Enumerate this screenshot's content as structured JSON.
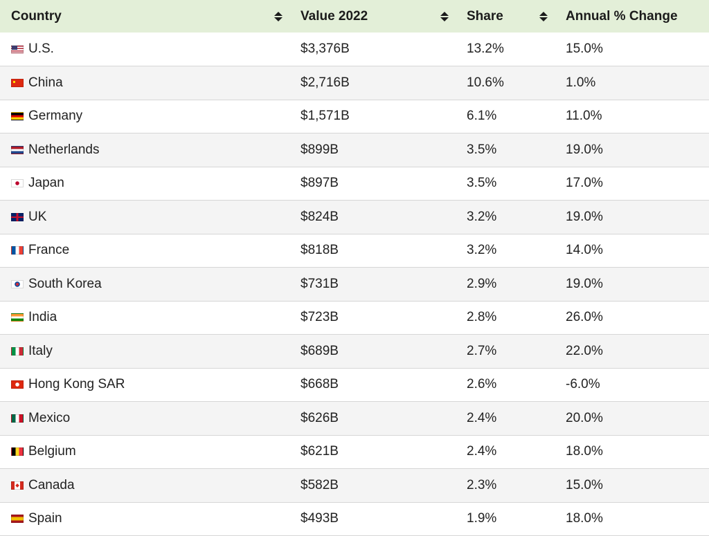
{
  "table": {
    "headers": [
      {
        "label": "Country",
        "sortable": true
      },
      {
        "label": "Value 2022",
        "sortable": true
      },
      {
        "label": "Share",
        "sortable": true
      },
      {
        "label": "Annual % Change",
        "sortable": false
      }
    ],
    "rows": [
      {
        "flag": "us",
        "country": "U.S.",
        "value": "$3,376B",
        "share": "13.2%",
        "change": "15.0%"
      },
      {
        "flag": "cn",
        "country": "China",
        "value": "$2,716B",
        "share": "10.6%",
        "change": "1.0%"
      },
      {
        "flag": "de",
        "country": "Germany",
        "value": "$1,571B",
        "share": "6.1%",
        "change": "11.0%"
      },
      {
        "flag": "nl",
        "country": "Netherlands",
        "value": "$899B",
        "share": "3.5%",
        "change": "19.0%"
      },
      {
        "flag": "jp",
        "country": "Japan",
        "value": "$897B",
        "share": "3.5%",
        "change": "17.0%"
      },
      {
        "flag": "uk",
        "country": "UK",
        "value": "$824B",
        "share": "3.2%",
        "change": "19.0%"
      },
      {
        "flag": "fr",
        "country": "France",
        "value": "$818B",
        "share": "3.2%",
        "change": "14.0%"
      },
      {
        "flag": "kr",
        "country": "South Korea",
        "value": "$731B",
        "share": "2.9%",
        "change": "19.0%"
      },
      {
        "flag": "in",
        "country": "India",
        "value": "$723B",
        "share": "2.8%",
        "change": "26.0%"
      },
      {
        "flag": "it",
        "country": "Italy",
        "value": "$689B",
        "share": "2.7%",
        "change": "22.0%"
      },
      {
        "flag": "hk",
        "country": "Hong Kong SAR",
        "value": "$668B",
        "share": "2.6%",
        "change": "-6.0%"
      },
      {
        "flag": "mx",
        "country": "Mexico",
        "value": "$626B",
        "share": "2.4%",
        "change": "20.0%"
      },
      {
        "flag": "be",
        "country": "Belgium",
        "value": "$621B",
        "share": "2.4%",
        "change": "18.0%"
      },
      {
        "flag": "ca",
        "country": "Canada",
        "value": "$582B",
        "share": "2.3%",
        "change": "15.0%"
      },
      {
        "flag": "es",
        "country": "Spain",
        "value": "$493B",
        "share": "1.9%",
        "change": "18.0%"
      }
    ]
  },
  "colors": {
    "header_bg": "#e3efd8",
    "row_alt_bg": "#f4f4f4",
    "border": "#d6d6d6"
  }
}
